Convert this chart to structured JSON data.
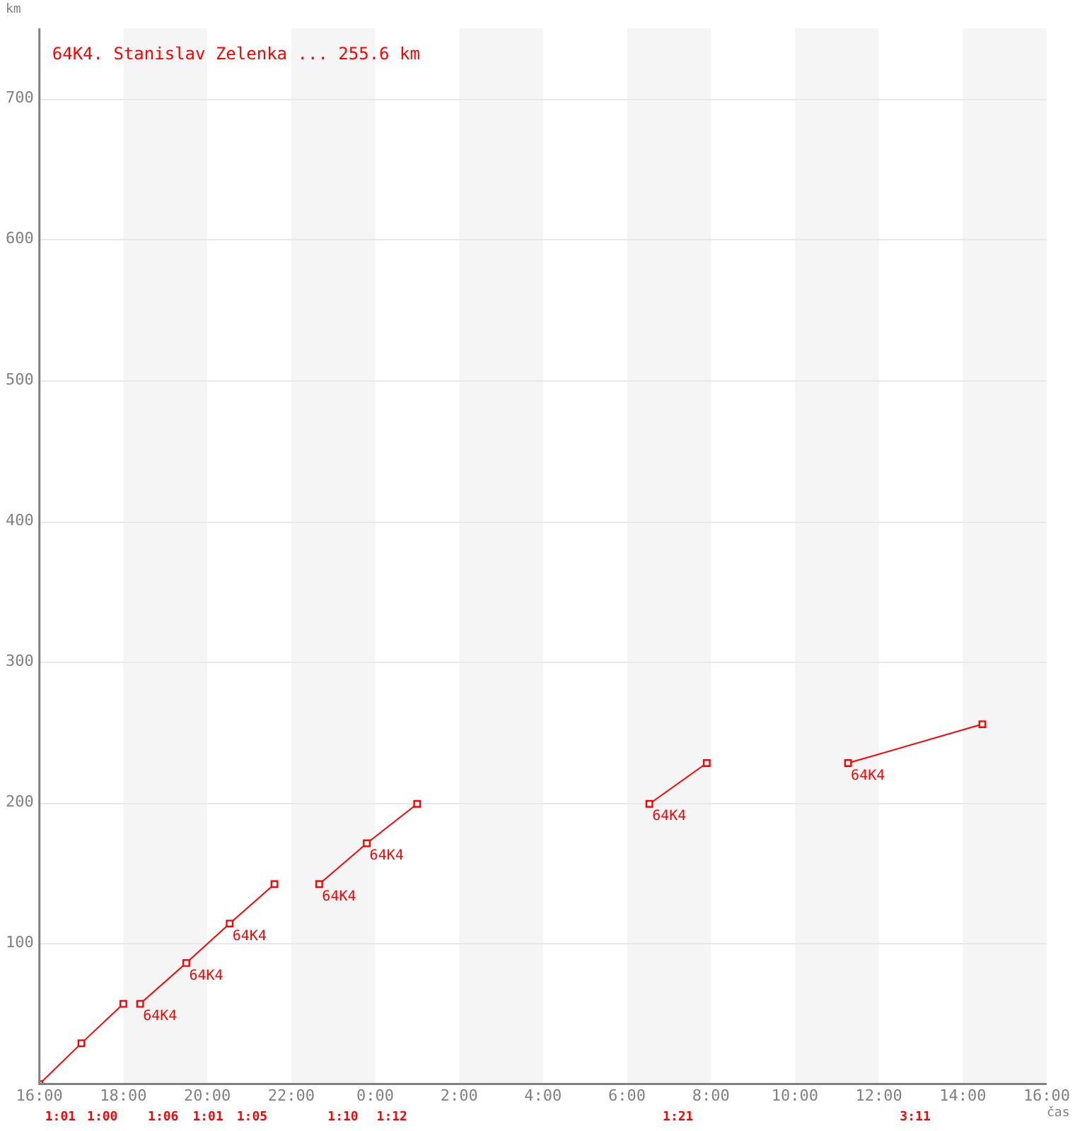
{
  "chart_data": {
    "type": "line",
    "title": "64K4. Stanislav Zelenka ... 255.6 km",
    "xlabel": "čas",
    "ylabel": "km",
    "xlim": [
      "--01-01T16:00",
      "--01-02T16:00"
    ],
    "xticks": [
      {
        "value": "--01-01T16:00",
        "label": "16:00"
      },
      {
        "value": "--01-01T18:00",
        "label": "18:00"
      },
      {
        "value": "--01-01T20:00",
        "label": "20:00"
      },
      {
        "value": "--01-01T22:00",
        "label": "22:00"
      },
      {
        "value": "--01-02T00:00",
        "label": "0:00"
      },
      {
        "value": "--01-02T02:00",
        "label": "2:00"
      },
      {
        "value": "--01-02T04:00",
        "label": "4:00"
      },
      {
        "value": "--01-02T06:00",
        "label": "6:00"
      },
      {
        "value": "--01-02T08:00",
        "label": "8:00"
      },
      {
        "value": "--01-02T10:00",
        "label": "10:00"
      },
      {
        "value": "--01-02T12:00",
        "label": "12:00"
      },
      {
        "value": "--01-02T14:00",
        "label": "14:00"
      },
      {
        "value": "--01-02T16:00",
        "label": "16:00"
      }
    ],
    "ylim": [
      0,
      750
    ],
    "yticks": [
      100,
      200,
      300,
      400,
      500,
      600,
      700
    ],
    "grid": "y",
    "marker": "square",
    "legend": false,
    "series": [
      {
        "color": "#ff0000",
        "x": [
          "--01-01T16:00",
          "--01-01T17:00",
          "--01-01T18:00"
        ],
        "values": [
          0,
          29,
          57
        ]
      },
      {
        "color": "#ff0000",
        "x": [
          "--01-01T18:24",
          "--01-01T19:30",
          "--01-01T20:32",
          "--01-01T21:36"
        ],
        "values": [
          57,
          86,
          114,
          142
        ]
      },
      {
        "color": "#ff0000",
        "x": [
          "--01-01T22:40",
          "--01-01T23:48",
          "--01-02T01:00"
        ],
        "values": [
          142,
          171,
          199
        ]
      },
      {
        "color": "#ff0000",
        "x": [
          "--01-02T06:32",
          "--01-02T07:54"
        ],
        "values": [
          199,
          228
        ]
      },
      {
        "color": "#ff0000",
        "x": [
          "--01-02T11:16",
          "--01-02T14:28"
        ],
        "values": [
          228,
          255.6
        ]
      }
    ],
    "bands": [
      {
        "axis": "x",
        "from": "--01-01T18:00",
        "to": "--01-01T20:00",
        "color": "#f5f5f5"
      },
      {
        "axis": "x",
        "from": "--01-01T22:00",
        "to": "--01-02T00:00",
        "color": "#f5f5f5"
      },
      {
        "axis": "x",
        "from": "--01-02T02:00",
        "to": "--01-02T04:00",
        "color": "#f5f5f5"
      },
      {
        "axis": "x",
        "from": "--01-02T06:00",
        "to": "--01-02T08:00",
        "color": "#f5f5f5"
      },
      {
        "axis": "x",
        "from": "--01-02T10:00",
        "to": "--01-02T12:00",
        "color": "#f5f5f5"
      },
      {
        "axis": "x",
        "from": "--01-02T14:00",
        "to": "--01-02T16:00",
        "color": "#f5f5f5"
      }
    ],
    "annotations": [
      "1:01",
      "1:00",
      "1:06",
      "1:01",
      "1:05",
      "1:10",
      "1:12",
      "1:21",
      "3:11",
      {
        "text": "64K4",
        "x": "--01-01T18:24",
        "y": 57
      },
      {
        "text": "64K4",
        "x": "--01-01T19:30",
        "y": 86
      },
      {
        "text": "64K4",
        "x": "--01-01T20:32",
        "y": 114
      },
      {
        "text": "64K4",
        "x": "--01-01T22:40",
        "y": 142
      },
      {
        "text": "64K4",
        "x": "--01-01T23:48",
        "y": 171
      },
      {
        "text": "64K4",
        "x": "--01-02T06:32",
        "y": 199
      },
      {
        "text": "64K4",
        "x": "--01-02T11:16",
        "y": 228
      }
    ]
  }
}
